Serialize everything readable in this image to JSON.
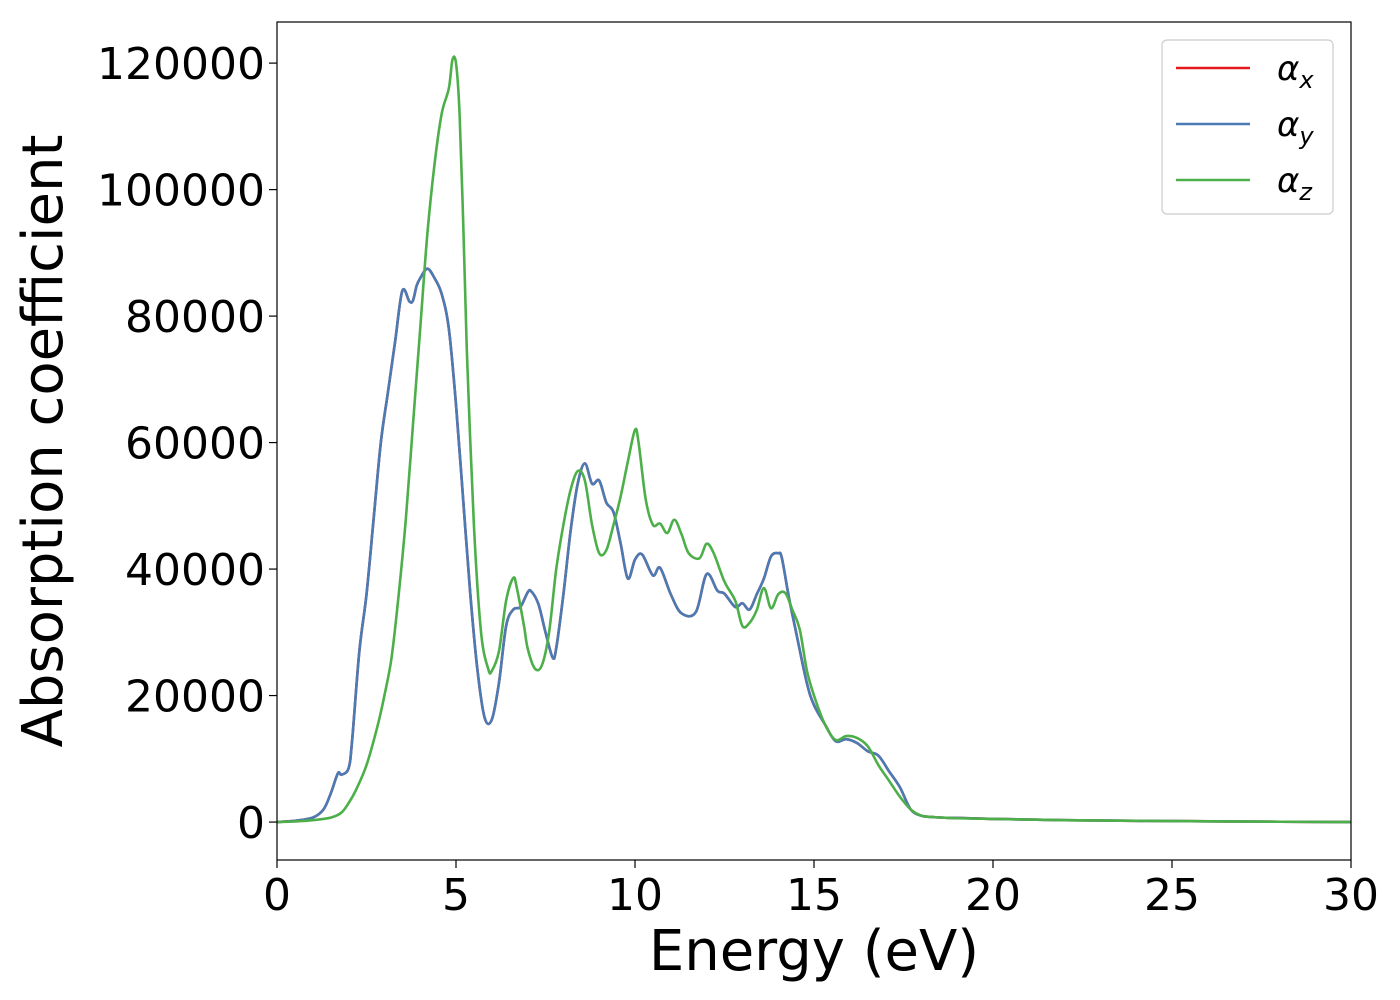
{
  "chart_data": {
    "type": "line",
    "xlabel": "Energy (eV)",
    "ylabel": "Absorption coefficient",
    "xlim": [
      0,
      30
    ],
    "ylim": [
      -6000,
      126500
    ],
    "xticks": [
      0,
      5,
      10,
      15,
      20,
      25,
      30
    ],
    "yticks": [
      0,
      20000,
      40000,
      60000,
      80000,
      100000,
      120000
    ],
    "grid": false,
    "legend_position": "top-right",
    "series": [
      {
        "name": "αx",
        "base": "α",
        "sub": "x",
        "color": "#e41a1c",
        "x": [
          0,
          0.5,
          1.0,
          1.3,
          1.5,
          1.7,
          1.8,
          2.0,
          2.1,
          2.3,
          2.5,
          2.7,
          2.9,
          3.1,
          3.3,
          3.5,
          3.7,
          3.8,
          3.9,
          4.0,
          4.2,
          4.4,
          4.6,
          4.8,
          5.0,
          5.2,
          5.4,
          5.6,
          5.8,
          6.0,
          6.2,
          6.4,
          6.6,
          6.8,
          7.0,
          7.1,
          7.3,
          7.5,
          7.7,
          7.8,
          8.0,
          8.2,
          8.4,
          8.6,
          8.8,
          9.0,
          9.2,
          9.4,
          9.6,
          9.8,
          10.0,
          10.2,
          10.5,
          10.7,
          11.0,
          11.3,
          11.7,
          12.0,
          12.3,
          12.5,
          12.8,
          13.0,
          13.2,
          13.4,
          13.6,
          13.8,
          14.0,
          14.1,
          14.3,
          14.5,
          14.8,
          15.0,
          15.3,
          15.6,
          15.9,
          16.2,
          16.5,
          16.8,
          17.1,
          17.4,
          17.7,
          18.0,
          18.3,
          18.6,
          19.0,
          20.0,
          22.0,
          25.0,
          28.0,
          30.0
        ],
        "y": [
          0,
          200,
          700,
          2000,
          4500,
          7700,
          7500,
          8500,
          13000,
          27000,
          36000,
          48000,
          60000,
          68000,
          76000,
          84000,
          82300,
          82500,
          84800,
          86000,
          87500,
          86000,
          83500,
          78000,
          66000,
          51000,
          36000,
          24000,
          16500,
          16200,
          22000,
          31000,
          33600,
          34000,
          36300,
          36500,
          34500,
          30000,
          26000,
          27500,
          36000,
          46000,
          53500,
          56700,
          53500,
          54000,
          50500,
          49000,
          44000,
          38500,
          41500,
          42300,
          39000,
          40200,
          36000,
          33000,
          33200,
          39200,
          36600,
          36100,
          34000,
          34600,
          33600,
          36000,
          38500,
          42000,
          42500,
          41800,
          35500,
          30000,
          22000,
          18500,
          15500,
          12800,
          13100,
          12500,
          11200,
          10500,
          8000,
          5500,
          2000,
          1000,
          800,
          700,
          650,
          500,
          300,
          150,
          50,
          0
        ]
      },
      {
        "name": "αy",
        "base": "α",
        "sub": "y",
        "color": "#4a7bb4",
        "x": [
          0,
          0.5,
          1.0,
          1.3,
          1.5,
          1.7,
          1.8,
          2.0,
          2.1,
          2.3,
          2.5,
          2.7,
          2.9,
          3.1,
          3.3,
          3.5,
          3.7,
          3.8,
          3.9,
          4.0,
          4.2,
          4.4,
          4.6,
          4.8,
          5.0,
          5.2,
          5.4,
          5.6,
          5.8,
          6.0,
          6.2,
          6.4,
          6.6,
          6.8,
          7.0,
          7.1,
          7.3,
          7.5,
          7.7,
          7.8,
          8.0,
          8.2,
          8.4,
          8.6,
          8.8,
          9.0,
          9.2,
          9.4,
          9.6,
          9.8,
          10.0,
          10.2,
          10.5,
          10.7,
          11.0,
          11.3,
          11.7,
          12.0,
          12.3,
          12.5,
          12.8,
          13.0,
          13.2,
          13.4,
          13.6,
          13.8,
          14.0,
          14.1,
          14.3,
          14.5,
          14.8,
          15.0,
          15.3,
          15.6,
          15.9,
          16.2,
          16.5,
          16.8,
          17.1,
          17.4,
          17.7,
          18.0,
          18.3,
          18.6,
          19.0,
          20.0,
          22.0,
          25.0,
          28.0,
          30.0
        ],
        "y": [
          0,
          200,
          700,
          2000,
          4500,
          7700,
          7500,
          8500,
          13000,
          27000,
          36000,
          48000,
          60000,
          68000,
          76000,
          84000,
          82300,
          82500,
          84800,
          86000,
          87500,
          86000,
          83500,
          78000,
          66000,
          51000,
          36000,
          24000,
          16500,
          16200,
          22000,
          31000,
          33600,
          34000,
          36300,
          36500,
          34500,
          30000,
          26000,
          27500,
          36000,
          46000,
          53500,
          56700,
          53500,
          54000,
          50500,
          49000,
          44000,
          38500,
          41500,
          42300,
          39000,
          40200,
          36000,
          33000,
          33200,
          39200,
          36600,
          36100,
          34000,
          34600,
          33600,
          36000,
          38500,
          42000,
          42500,
          41800,
          35500,
          30000,
          22000,
          18500,
          15500,
          12800,
          13100,
          12500,
          11200,
          10500,
          8000,
          5500,
          2000,
          1000,
          800,
          700,
          650,
          500,
          300,
          150,
          50,
          0
        ]
      },
      {
        "name": "αz",
        "base": "α",
        "sub": "z",
        "color": "#4daf4a",
        "x": [
          0,
          0.5,
          1.0,
          1.5,
          1.8,
          2.0,
          2.2,
          2.5,
          2.8,
          3.0,
          3.2,
          3.4,
          3.6,
          3.8,
          4.0,
          4.2,
          4.4,
          4.6,
          4.8,
          4.9,
          5.0,
          5.1,
          5.2,
          5.3,
          5.5,
          5.7,
          5.9,
          6.0,
          6.2,
          6.4,
          6.6,
          6.7,
          6.9,
          7.0,
          7.2,
          7.4,
          7.6,
          7.8,
          8.0,
          8.2,
          8.4,
          8.6,
          8.8,
          9.0,
          9.2,
          9.4,
          9.6,
          9.8,
          10.0,
          10.1,
          10.3,
          10.5,
          10.7,
          10.9,
          11.1,
          11.3,
          11.5,
          11.8,
          12.0,
          12.2,
          12.5,
          12.8,
          13.0,
          13.2,
          13.4,
          13.6,
          13.8,
          14.0,
          14.2,
          14.4,
          14.6,
          14.8,
          15.0,
          15.3,
          15.6,
          15.9,
          16.2,
          16.5,
          16.8,
          17.1,
          17.4,
          17.7,
          18.0,
          18.3,
          18.6,
          19.0,
          20.0,
          22.0,
          25.0,
          28.0,
          30.0
        ],
        "y": [
          0,
          100,
          300,
          700,
          1500,
          3000,
          5000,
          9000,
          15000,
          20000,
          26000,
          36000,
          48000,
          63000,
          78000,
          93000,
          104000,
          112000,
          116000,
          120500,
          120000,
          112000,
          95000,
          75000,
          47000,
          30000,
          24200,
          23900,
          27000,
          35000,
          38600,
          37000,
          31000,
          27500,
          24300,
          24800,
          30000,
          40000,
          47000,
          52500,
          55500,
          54000,
          47000,
          42500,
          43000,
          47000,
          51500,
          57000,
          62000,
          60000,
          51000,
          47000,
          47200,
          45700,
          47800,
          45500,
          42500,
          41700,
          44000,
          42500,
          38000,
          35000,
          31000,
          31500,
          33500,
          37000,
          33800,
          36000,
          36200,
          33500,
          30500,
          24000,
          20000,
          15500,
          13000,
          13600,
          13300,
          12000,
          9000,
          6500,
          4000,
          2000,
          1000,
          800,
          700,
          600,
          500,
          300,
          150,
          50,
          0
        ]
      }
    ]
  }
}
